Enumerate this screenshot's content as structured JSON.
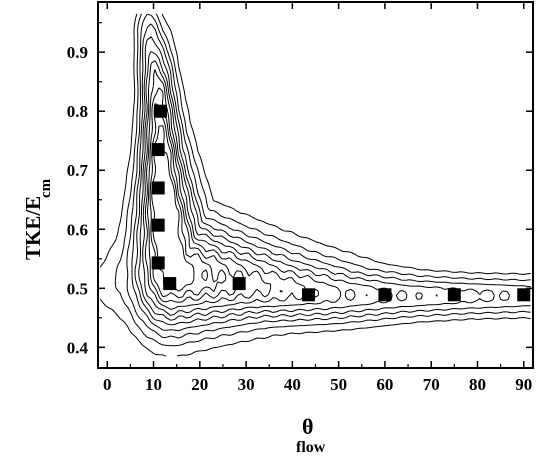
{
  "chart_data": {
    "type": "scatter",
    "title": "",
    "xlabel": "θ",
    "xlabel_subscript": "flow",
    "ylabel": "TKE/E",
    "ylabel_subscript": "cm",
    "xlim": [
      -2,
      92
    ],
    "ylim": [
      0.365,
      0.985
    ],
    "x_ticks": [
      0,
      10,
      20,
      30,
      40,
      50,
      60,
      70,
      80,
      90
    ],
    "y_ticks": [
      0.4,
      0.5,
      0.6,
      0.7,
      0.8,
      0.9
    ],
    "y_tick_labels": [
      "0.4",
      "0.5",
      "0.6",
      "0.7",
      "0.8",
      "0.9"
    ],
    "grid": false,
    "series": [
      {
        "marker": "filled-square",
        "color": "#000000",
        "points": [
          {
            "x": 11.5,
            "y": 0.8
          },
          {
            "x": 11.0,
            "y": 0.735
          },
          {
            "x": 11.0,
            "y": 0.67
          },
          {
            "x": 11.0,
            "y": 0.607
          },
          {
            "x": 11.0,
            "y": 0.543
          },
          {
            "x": 13.5,
            "y": 0.508
          },
          {
            "x": 28.5,
            "y": 0.508
          },
          {
            "x": 43.5,
            "y": 0.489
          },
          {
            "x": 60.0,
            "y": 0.489
          },
          {
            "x": 75.0,
            "y": 0.489
          },
          {
            "x": 90.0,
            "y": 0.489
          }
        ]
      }
    ],
    "contours": {
      "kind": "density contour lines",
      "color": "#000000",
      "levels": 11,
      "ridge": [
        [
          9,
          0.93
        ],
        [
          11,
          0.8
        ],
        [
          12,
          0.65
        ],
        [
          14,
          0.53
        ],
        [
          28,
          0.505
        ],
        [
          45,
          0.49
        ],
        [
          60,
          0.487
        ],
        [
          75,
          0.487
        ],
        [
          91,
          0.487
        ]
      ],
      "ridge_half_width_x": [
        2,
        2.5,
        3.5,
        6,
        16,
        14,
        14,
        14,
        14
      ],
      "ridge_half_width_y": [
        0.04,
        0.08,
        0.1,
        0.07,
        0.045,
        0.035,
        0.028,
        0.025,
        0.025
      ],
      "ridge_peak": [
        0.35,
        0.75,
        1.0,
        0.9,
        0.65,
        0.5,
        0.4,
        0.35,
        0.3
      ]
    }
  }
}
